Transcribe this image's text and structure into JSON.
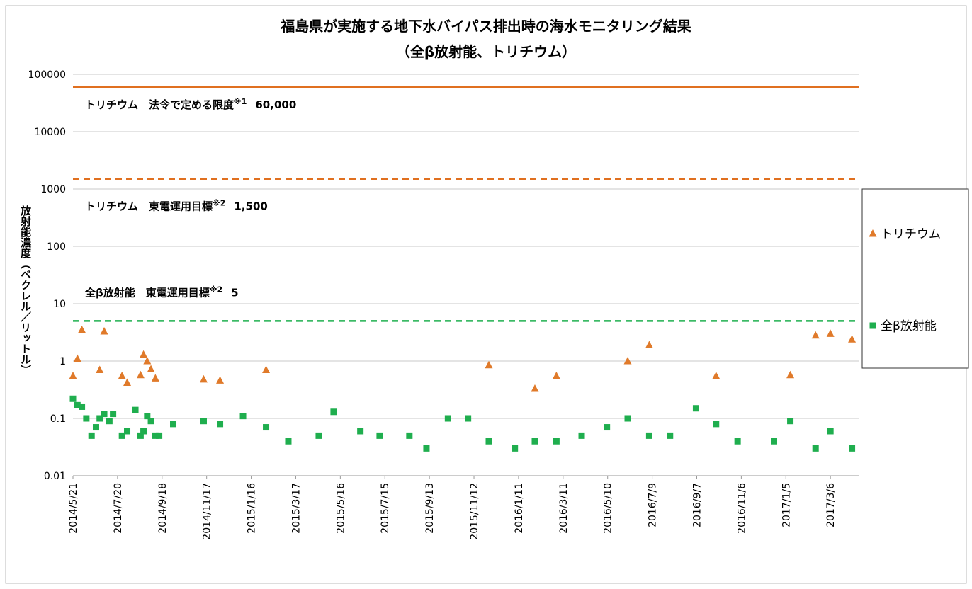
{
  "chart_data": {
    "type": "scatter",
    "title": "福島県が実施する地下水バイパス排出時の海水モニタリング結果",
    "subtitle": "（全β放射能、トリチウム）",
    "y_label": "放射能濃度（ベクレル／リットル）",
    "yscale": "log",
    "ylim": [
      0.01,
      100000
    ],
    "yticks": [
      0.01,
      0.1,
      1,
      10,
      100,
      1000,
      10000,
      100000
    ],
    "grid": true,
    "xlim": [
      "2014-05-21",
      "2017-04-13"
    ],
    "xticks": [
      {
        "value": "2014-05-21",
        "label": "2014/5/21"
      },
      {
        "value": "2014-07-20",
        "label": "2014/7/20"
      },
      {
        "value": "2014-09-18",
        "label": "2014/9/18"
      },
      {
        "value": "2014-11-17",
        "label": "2014/11/17"
      },
      {
        "value": "2015-01-16",
        "label": "2015/1/16"
      },
      {
        "value": "2015-03-17",
        "label": "2015/3/17"
      },
      {
        "value": "2015-05-16",
        "label": "2015/5/16"
      },
      {
        "value": "2015-07-15",
        "label": "2015/7/15"
      },
      {
        "value": "2015-09-13",
        "label": "2015/9/13"
      },
      {
        "value": "2015-11-12",
        "label": "2015/11/12"
      },
      {
        "value": "2016-01-11",
        "label": "2016/1/11"
      },
      {
        "value": "2016-03-11",
        "label": "2016/3/11"
      },
      {
        "value": "2016-05-10",
        "label": "2016/5/10"
      },
      {
        "value": "2016-07-09",
        "label": "2016/7/9"
      },
      {
        "value": "2016-09-07",
        "label": "2016/9/7"
      },
      {
        "value": "2016-11-06",
        "label": "2016/11/6"
      },
      {
        "value": "2017-01-05",
        "label": "2017/1/5"
      },
      {
        "value": "2017-03-06",
        "label": "2017/3/6"
      }
    ],
    "legend": "right",
    "reference_lines": [
      {
        "value": 60000,
        "color": "#e07020",
        "style": "solid",
        "label": "トリチウム　法令で定める限度",
        "note": "※1",
        "value_label": "60,000"
      },
      {
        "value": 1500,
        "color": "#e07020",
        "style": "dashed",
        "label": "トリチウム　東電運用目標",
        "note": "※2",
        "value_label": "1,500"
      },
      {
        "value": 5,
        "color": "#20b050",
        "style": "dashed",
        "label": "全β放射能　東電運用目標",
        "note": "※2",
        "value_label": "5"
      }
    ],
    "series": [
      {
        "name": "トリチウム",
        "color": "#e07a2a",
        "marker": "triangle",
        "x": [
          "2014-05-21",
          "2014-05-27",
          "2014-06-02",
          "2014-06-26",
          "2014-07-02",
          "2014-07-26",
          "2014-08-02",
          "2014-08-20",
          "2014-08-24",
          "2014-08-29",
          "2014-09-03",
          "2014-09-09",
          "2014-11-13",
          "2014-12-05",
          "2015-02-05",
          "2015-12-02",
          "2016-02-02",
          "2016-03-02",
          "2016-06-06",
          "2016-07-05",
          "2016-10-03",
          "2017-01-11",
          "2017-02-14",
          "2017-03-06",
          "2017-04-04"
        ],
        "values": [
          0.55,
          1.1,
          3.5,
          0.7,
          3.3,
          0.55,
          0.42,
          0.57,
          1.3,
          1.0,
          0.72,
          0.5,
          0.48,
          0.46,
          0.7,
          0.85,
          0.33,
          0.55,
          1.0,
          1.9,
          0.55,
          0.57,
          2.8,
          3.0,
          2.4
        ]
      },
      {
        "name": "全β放射能",
        "color": "#1fae4e",
        "marker": "square",
        "x": [
          "2014-05-21",
          "2014-05-27",
          "2014-06-02",
          "2014-06-08",
          "2014-06-15",
          "2014-06-21",
          "2014-06-26",
          "2014-07-02",
          "2014-07-09",
          "2014-07-14",
          "2014-07-26",
          "2014-08-02",
          "2014-08-13",
          "2014-08-20",
          "2014-08-24",
          "2014-08-29",
          "2014-09-03",
          "2014-09-09",
          "2014-09-14",
          "2014-10-03",
          "2014-11-13",
          "2014-12-05",
          "2015-01-05",
          "2015-02-05",
          "2015-03-07",
          "2015-04-17",
          "2015-05-07",
          "2015-06-12",
          "2015-07-08",
          "2015-08-17",
          "2015-09-09",
          "2015-10-08",
          "2015-11-04",
          "2015-12-02",
          "2016-01-06",
          "2016-02-02",
          "2016-03-02",
          "2016-04-05",
          "2016-05-09",
          "2016-06-06",
          "2016-07-05",
          "2016-08-02",
          "2016-09-06",
          "2016-10-03",
          "2016-11-01",
          "2016-12-20",
          "2017-01-11",
          "2017-02-14",
          "2017-03-06",
          "2017-04-04"
        ],
        "values": [
          0.22,
          0.17,
          0.16,
          0.1,
          0.05,
          0.07,
          0.1,
          0.12,
          0.09,
          0.12,
          0.05,
          0.06,
          0.14,
          0.05,
          0.06,
          0.11,
          0.09,
          0.05,
          0.05,
          0.08,
          0.09,
          0.08,
          0.11,
          0.07,
          0.04,
          0.05,
          0.13,
          0.06,
          0.05,
          0.05,
          0.03,
          0.1,
          0.1,
          0.04,
          0.03,
          0.04,
          0.04,
          0.05,
          0.07,
          0.1,
          0.05,
          0.05,
          0.15,
          0.08,
          0.04,
          0.04,
          0.09,
          0.03,
          0.06,
          0.03
        ]
      }
    ]
  }
}
